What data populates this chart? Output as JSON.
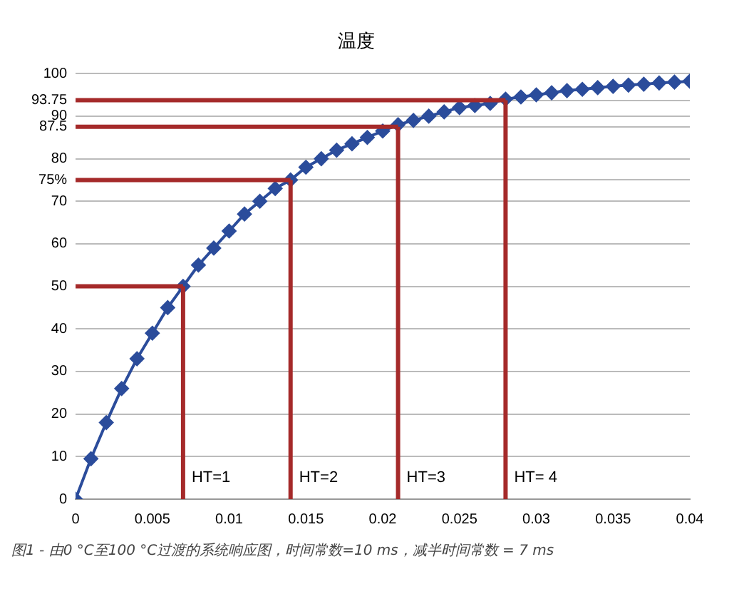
{
  "chart_data": {
    "type": "line",
    "title": "温度",
    "x": [
      0,
      0.001,
      0.002,
      0.003,
      0.004,
      0.005,
      0.006,
      0.007,
      0.008,
      0.009,
      0.01,
      0.011,
      0.012,
      0.013,
      0.014,
      0.015,
      0.016,
      0.017,
      0.018,
      0.019,
      0.02,
      0.021,
      0.022,
      0.023,
      0.024,
      0.025,
      0.026,
      0.027,
      0.028,
      0.029,
      0.03,
      0.031,
      0.032,
      0.033,
      0.034,
      0.035,
      0.036,
      0.037,
      0.038,
      0.039,
      0.04
    ],
    "series": [
      {
        "color": "#2b4c9b",
        "values": [
          0,
          9.5,
          18,
          26,
          33,
          39,
          45,
          50,
          55,
          59,
          63,
          67,
          70,
          73,
          75,
          78,
          80,
          82,
          83.5,
          85,
          86.5,
          88,
          89,
          90,
          91,
          92,
          92.5,
          93,
          94,
          94.5,
          95,
          95.5,
          96,
          96.3,
          96.7,
          97,
          97.3,
          97.5,
          97.8,
          98,
          98.2
        ]
      }
    ],
    "xlim": [
      0,
      0.04
    ],
    "xticks": [
      0,
      0.005,
      0.01,
      0.015,
      0.02,
      0.025,
      0.03,
      0.035,
      0.04
    ],
    "ylim": [
      0,
      100
    ],
    "yticks": [
      0,
      10,
      20,
      30,
      40,
      50,
      60,
      70,
      {
        "value": 75,
        "label": "75%"
      },
      80,
      {
        "value": 87.5,
        "label": "87.5"
      },
      90,
      {
        "value": 93.75,
        "label": "93.75"
      },
      100
    ],
    "ref_lines": [
      {
        "axis": "y",
        "value": 50,
        "color": "#a52a2a"
      },
      {
        "axis": "y",
        "value": 75,
        "color": "#a52a2a"
      },
      {
        "axis": "y",
        "value": 87.5,
        "color": "#a52a2a"
      },
      {
        "axis": "y",
        "value": 93.75,
        "color": "#a52a2a"
      },
      {
        "axis": "x",
        "value": 0.007,
        "color": "#a52a2a"
      },
      {
        "axis": "x",
        "value": 0.014,
        "color": "#a52a2a"
      },
      {
        "axis": "x",
        "value": 0.021,
        "color": "#a52a2a"
      },
      {
        "axis": "x",
        "value": 0.028,
        "color": "#a52a2a"
      }
    ],
    "annotations": [
      {
        "text": "HT=1",
        "x": 0.007,
        "y": 5
      },
      {
        "text": "HT=2",
        "x": 0.014,
        "y": 5
      },
      {
        "text": "HT=3",
        "x": 0.021,
        "y": 5
      },
      {
        "text": "HT= 4",
        "x": 0.028,
        "y": 5
      },
      "图1 - 由0 °C至100 °C过渡的系统响应图，时间常数=10 ms，减半时间常数 = 7 ms"
    ],
    "grid": "y",
    "legend": false,
    "marker": "diamond",
    "line_style": "solid"
  }
}
